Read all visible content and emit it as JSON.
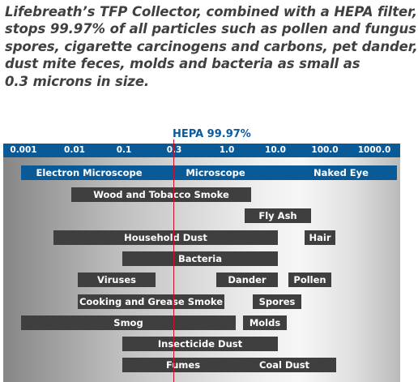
{
  "intro": {
    "lines": [
      "Lifebreath’s TFP Collector, combined with a HEPA filter,",
      "stops 99.97% of all particles such as pollen and fungus",
      "spores, cigarette carcinogens and carbons, pet dander,",
      "dust mite feces, molds and bacteria as small as",
      "0.3 microns in size."
    ]
  },
  "hepa": {
    "label": "HEPA 99.97%",
    "value": 0.3
  },
  "scale": {
    "ticks": [
      "0.001",
      "0.01",
      "0.1",
      "0.3",
      "1.0",
      "10.0",
      "100.0",
      "1000.0"
    ]
  },
  "colors": {
    "bar_dark": "#3f3f3f",
    "bar_blue": "#0b5a98",
    "scale_blue": "#0b5a98",
    "hepa_line": "#c8102e"
  },
  "visibility": {
    "label": "Electron Microscope",
    "segments": [
      "Electron Microscope",
      "Microscope",
      "Naked Eye"
    ]
  },
  "rows": [
    {
      "label": "Wood and Tobacco Smoke"
    },
    {
      "label": "Fly Ash"
    },
    {
      "label": "Household Dust"
    },
    {
      "label": "Hair"
    },
    {
      "label": "Bacteria"
    },
    {
      "label": "Viruses"
    },
    {
      "label": "Dander"
    },
    {
      "label": "Pollen"
    },
    {
      "label": "Cooking and Grease Smoke"
    },
    {
      "label": "Spores"
    },
    {
      "label": "Smog"
    },
    {
      "label": "Molds"
    },
    {
      "label": "Insecticide Dust"
    },
    {
      "label": "Fumes"
    },
    {
      "label": "Coal Dust"
    }
  ]
}
